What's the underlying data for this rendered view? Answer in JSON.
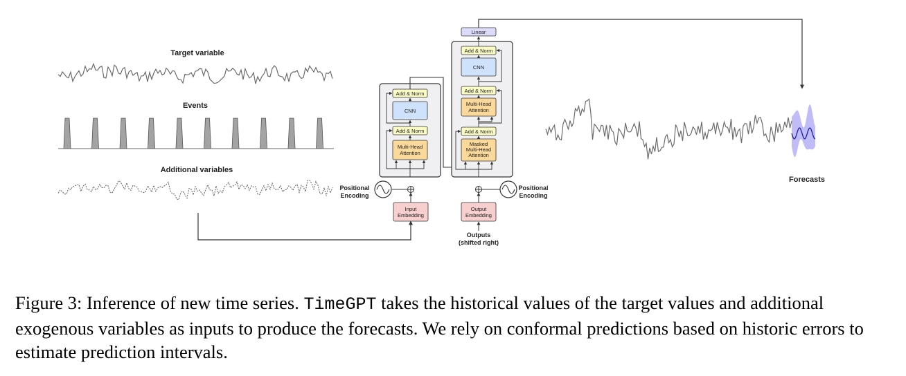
{
  "labels": {
    "target_variable": "Target variable",
    "events": "Events",
    "additional_variables": "Additional variables",
    "forecasts": "Forecasts",
    "positional_encoding_left": [
      "Positional",
      "Encoding"
    ],
    "positional_encoding_right": [
      "Positional",
      "Encoding"
    ],
    "outputs": [
      "Outputs",
      "(shifted right)"
    ]
  },
  "encoder": {
    "add_norm_top": "Add & Norm",
    "cnn": "CNN",
    "add_norm_bottom": "Add & Norm",
    "attention": [
      "Multi-Head",
      "Attention"
    ],
    "embedding": [
      "Input",
      "Embedding"
    ]
  },
  "decoder": {
    "linear": "Linear",
    "add_norm_1": "Add & Norm",
    "cnn": "CNN",
    "add_norm_2": "Add & Norm",
    "attention": [
      "Multi-Head",
      "Attention"
    ],
    "add_norm_3": "Add & Norm",
    "masked_attention": [
      "Masked",
      "Multi-Head",
      "Attention"
    ],
    "embedding": [
      "Output",
      "Embedding"
    ]
  },
  "colors": {
    "add_norm": "#fbfbc6",
    "cnn": "#cfe2fb",
    "attention": "#fbd99b",
    "embedding": "#f8cfcf",
    "linear": "#dcdcfa",
    "block_bg": "#f0f0f3",
    "forecast_line": "#1f1fa6",
    "forecast_band": "#a9a6f5"
  },
  "caption": {
    "prefix": "Figure 3: Inference of new time series. ",
    "model": "TimeGPT",
    "suffix": " takes the historical values of the target values and additional exogenous variables as inputs to produce the forecasts. We rely on conformal predictions based on historic errors to estimate prediction intervals."
  }
}
